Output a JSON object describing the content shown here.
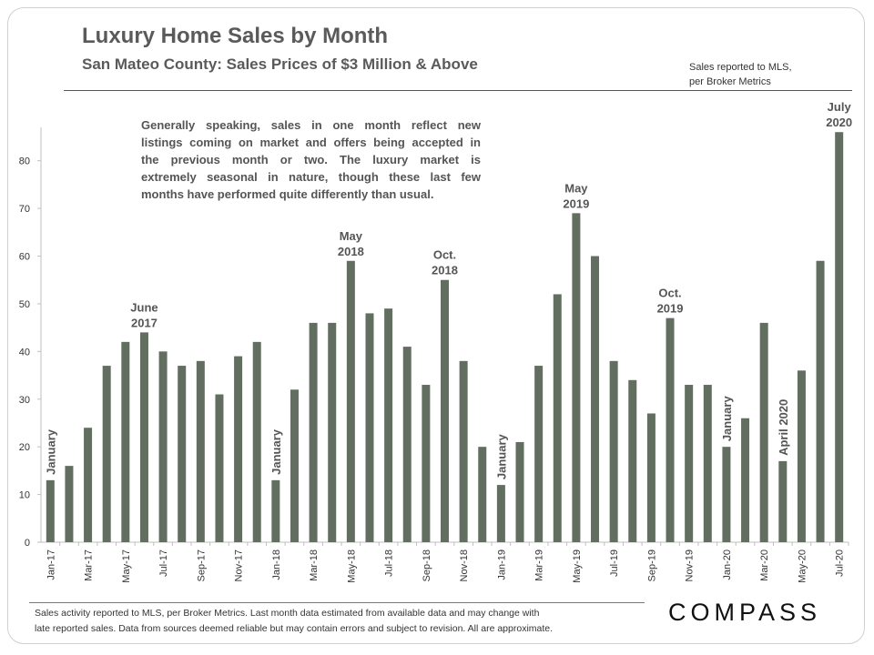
{
  "header": {
    "title": "Luxury Home Sales by Month",
    "subtitle": "San Mateo County: Sales Prices of $3 Million & Above",
    "source_note_lines": [
      "Sales reported to MLS,",
      "per Broker Metrics"
    ]
  },
  "commentary_lines": [
    "Generally speaking, sales in one month reflect new",
    "listings coming on market and offers being accepted in",
    "the previous month or two. The luxury market is",
    "extremely seasonal in nature, though these last few",
    "months have performed quite differently than usual."
  ],
  "footer_lines": [
    "Sales activity reported to MLS, per Broker Metrics. Last month data estimated from available data and may change with",
    "late reported sales. Data from sources deemed reliable but may contain errors and subject to revision. All are approximate."
  ],
  "logo": "COMPASS",
  "colors": {
    "bar": "#626e5f",
    "axis": "#bfbfbf",
    "text": "#444444"
  },
  "chart_data": {
    "type": "bar",
    "categories": [
      "Jan-17",
      "Feb-17",
      "Mar-17",
      "Apr-17",
      "May-17",
      "Jun-17",
      "Jul-17",
      "Aug-17",
      "Sep-17",
      "Oct-17",
      "Nov-17",
      "Dec-17",
      "Jan-18",
      "Feb-18",
      "Mar-18",
      "Apr-18",
      "May-18",
      "Jun-18",
      "Jul-18",
      "Aug-18",
      "Sep-18",
      "Oct-18",
      "Nov-18",
      "Dec-18",
      "Jan-19",
      "Feb-19",
      "Mar-19",
      "Apr-19",
      "May-19",
      "Jun-19",
      "Jul-19",
      "Aug-19",
      "Sep-19",
      "Oct-19",
      "Nov-19",
      "Dec-19",
      "Jan-20",
      "Feb-20",
      "Mar-20",
      "Apr-20",
      "May-20",
      "Jun-20",
      "Jul-20"
    ],
    "tick_labels": [
      "Jan-17",
      "",
      "Mar-17",
      "",
      "May-17",
      "",
      "Jul-17",
      "",
      "Sep-17",
      "",
      "Nov-17",
      "",
      "Jan-18",
      "",
      "Mar-18",
      "",
      "May-18",
      "",
      "Jul-18",
      "",
      "Sep-18",
      "",
      "Nov-18",
      "",
      "Jan-19",
      "",
      "Mar-19",
      "",
      "May-19",
      "",
      "Jul-19",
      "",
      "Sep-19",
      "",
      "Nov-19",
      "",
      "Jan-20",
      "",
      "Mar-20",
      "",
      "May-20",
      "",
      "Jul-20"
    ],
    "values": [
      13,
      16,
      24,
      37,
      42,
      44,
      40,
      37,
      38,
      31,
      39,
      42,
      13,
      32,
      46,
      46,
      59,
      48,
      49,
      41,
      33,
      55,
      38,
      20,
      12,
      21,
      37,
      52,
      69,
      60,
      38,
      34,
      27,
      47,
      33,
      33,
      20,
      26,
      46,
      17,
      36,
      59,
      86
    ],
    "ylim": [
      0,
      87
    ],
    "yticks": [
      0,
      10,
      20,
      30,
      40,
      50,
      60,
      70,
      80
    ],
    "grid": false,
    "annotations": [
      {
        "index": 0,
        "lines": [
          "January"
        ],
        "vertical": true
      },
      {
        "index": 5,
        "lines": [
          "June",
          "2017"
        ],
        "vertical": false
      },
      {
        "index": 12,
        "lines": [
          "January"
        ],
        "vertical": true
      },
      {
        "index": 16,
        "lines": [
          "May",
          "2018"
        ],
        "vertical": false
      },
      {
        "index": 21,
        "lines": [
          "Oct.",
          "2018"
        ],
        "vertical": false
      },
      {
        "index": 24,
        "lines": [
          "January"
        ],
        "vertical": true
      },
      {
        "index": 28,
        "lines": [
          "May",
          "2019"
        ],
        "vertical": false
      },
      {
        "index": 33,
        "lines": [
          "Oct.",
          "2019"
        ],
        "vertical": false
      },
      {
        "index": 36,
        "lines": [
          "January"
        ],
        "vertical": true
      },
      {
        "index": 39,
        "lines": [
          "April 2020"
        ],
        "vertical": true
      },
      {
        "index": 42,
        "lines": [
          "July",
          "2020"
        ],
        "vertical": false
      }
    ]
  }
}
